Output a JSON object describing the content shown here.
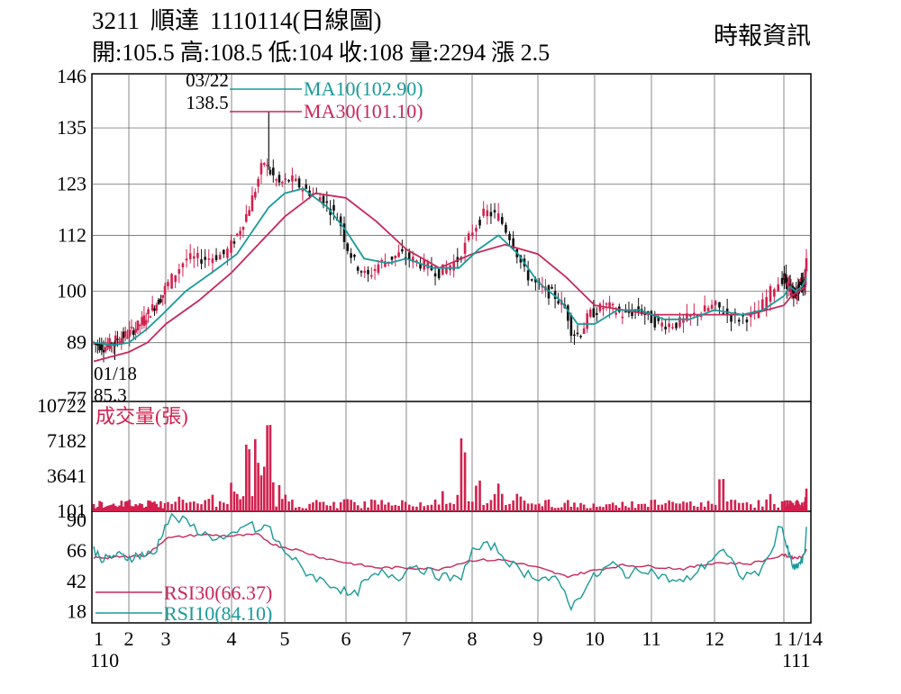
{
  "header": {
    "code": "3211",
    "name": "順達",
    "date": "1110114(日線圖)",
    "open": "開:105.5",
    "high": "高:108.5",
    "low": "低:104",
    "close": "收:108",
    "volume": "量:2294",
    "change": "漲 2.5",
    "source": "時報資訊"
  },
  "colors": {
    "candle": "#d2214e",
    "ma10": "#1a9a9a",
    "ma30": "#c8285a",
    "rsi10": "#1a9a9a",
    "rsi30": "#c8285a",
    "volume": "#d2214e",
    "grid": "#555555"
  },
  "chart_data": [
    {
      "type": "candlestick",
      "title": "3211 順達 1110114(日線圖)",
      "x_ticks": [
        "1",
        "2",
        "3",
        "4",
        "5",
        "6",
        "7",
        "8",
        "9",
        "10",
        "11",
        "12",
        "1",
        "1/14"
      ],
      "x_tick_sub": {
        "first": "110",
        "last": "111"
      },
      "y_ticks": [
        146,
        135,
        123,
        112,
        100,
        89,
        77
      ],
      "ylim": [
        77,
        146
      ],
      "grid": true,
      "legend": [
        {
          "name": "MA10(102.90)",
          "color": "#1a9a9a"
        },
        {
          "name": "MA30(101.10)",
          "color": "#c8285a"
        }
      ],
      "annotations": [
        {
          "date": "03/22",
          "value": 138.5,
          "text_top": "03/22",
          "text_bottom": "138.5"
        },
        {
          "date": "01/18",
          "value": 85.3,
          "text_top": "01/18",
          "text_bottom": "85.3"
        }
      ],
      "close_path": [
        [
          0,
          89
        ],
        [
          0.3,
          88
        ],
        [
          0.6,
          89.5
        ],
        [
          1.0,
          91
        ],
        [
          1.3,
          93
        ],
        [
          1.6,
          96
        ],
        [
          1.9,
          99
        ],
        [
          2.1,
          103
        ],
        [
          2.3,
          107
        ],
        [
          2.6,
          107
        ],
        [
          2.9,
          108
        ],
        [
          3.1,
          112
        ],
        [
          3.3,
          117
        ],
        [
          3.45,
          122
        ],
        [
          3.6,
          128
        ],
        [
          3.75,
          125
        ],
        [
          3.9,
          123
        ],
        [
          4.1,
          124
        ],
        [
          4.3,
          122
        ],
        [
          4.6,
          120
        ],
        [
          4.9,
          115
        ],
        [
          5.0,
          110
        ],
        [
          5.15,
          106
        ],
        [
          5.35,
          103
        ],
        [
          5.55,
          106
        ],
        [
          5.9,
          108
        ],
        [
          6.2,
          106
        ],
        [
          6.5,
          104
        ],
        [
          6.8,
          107
        ],
        [
          7.0,
          113
        ],
        [
          7.2,
          117
        ],
        [
          7.4,
          116
        ],
        [
          7.6,
          111
        ],
        [
          7.8,
          104
        ],
        [
          8.0,
          101
        ],
        [
          8.3,
          99
        ],
        [
          8.5,
          96
        ],
        [
          8.6,
          91
        ],
        [
          8.75,
          91
        ],
        [
          8.9,
          95
        ],
        [
          9.2,
          97
        ],
        [
          9.5,
          95
        ],
        [
          9.8,
          96
        ],
        [
          10.1,
          93
        ],
        [
          10.4,
          93
        ],
        [
          10.7,
          95
        ],
        [
          11.0,
          97
        ],
        [
          11.3,
          94
        ],
        [
          11.6,
          95
        ],
        [
          11.85,
          101
        ],
        [
          12.0,
          103
        ],
        [
          12.3,
          101
        ],
        [
          12.6,
          100
        ],
        [
          12.8,
          99
        ],
        [
          13.1,
          102
        ],
        [
          13.4,
          101.5
        ],
        [
          13.5,
          108
        ]
      ],
      "ma10_path": [
        [
          0,
          89
        ],
        [
          0.6,
          88.5
        ],
        [
          1.0,
          89
        ],
        [
          1.5,
          92
        ],
        [
          1.9,
          95
        ],
        [
          2.3,
          100
        ],
        [
          2.7,
          104
        ],
        [
          3.1,
          108
        ],
        [
          3.4,
          113
        ],
        [
          3.7,
          118
        ],
        [
          4.0,
          121
        ],
        [
          4.3,
          122
        ],
        [
          4.7,
          118
        ],
        [
          5.0,
          113
        ],
        [
          5.3,
          107
        ],
        [
          5.7,
          106
        ],
        [
          6.0,
          107
        ],
        [
          6.4,
          105
        ],
        [
          6.8,
          105
        ],
        [
          7.1,
          109
        ],
        [
          7.4,
          112
        ],
        [
          7.7,
          108
        ],
        [
          8.0,
          102
        ],
        [
          8.4,
          98
        ],
        [
          8.7,
          93
        ],
        [
          9.0,
          93
        ],
        [
          9.4,
          96
        ],
        [
          9.8,
          96
        ],
        [
          10.2,
          94
        ],
        [
          10.6,
          94
        ],
        [
          11.0,
          96
        ],
        [
          11.4,
          95
        ],
        [
          11.7,
          96
        ],
        [
          12.0,
          99
        ],
        [
          12.4,
          101
        ],
        [
          12.8,
          100
        ],
        [
          13.2,
          101
        ],
        [
          13.5,
          102.9
        ]
      ],
      "ma30_path": [
        [
          0,
          85
        ],
        [
          0.5,
          86
        ],
        [
          1.0,
          87
        ],
        [
          1.5,
          89
        ],
        [
          2.0,
          93
        ],
        [
          2.5,
          98
        ],
        [
          3.0,
          104
        ],
        [
          3.5,
          110
        ],
        [
          4.0,
          116
        ],
        [
          4.5,
          121
        ],
        [
          5.0,
          120
        ],
        [
          5.5,
          115
        ],
        [
          6.0,
          109
        ],
        [
          6.5,
          105
        ],
        [
          7.0,
          108
        ],
        [
          7.5,
          110
        ],
        [
          8.0,
          108
        ],
        [
          8.5,
          103
        ],
        [
          9.0,
          97
        ],
        [
          9.5,
          96
        ],
        [
          10.0,
          95
        ],
        [
          10.5,
          95
        ],
        [
          11.0,
          95
        ],
        [
          11.5,
          95
        ],
        [
          12.0,
          97
        ],
        [
          12.5,
          99
        ],
        [
          13.0,
          100
        ],
        [
          13.5,
          101.1
        ]
      ],
      "x_label_positions_month_index": true
    },
    {
      "type": "bar",
      "title": "成交量(張)",
      "y_ticks": [
        10722,
        7182,
        3641,
        101
      ],
      "ylim": [
        0,
        10722
      ],
      "volume_peaks": [
        [
          0.5,
          700
        ],
        [
          1.0,
          900
        ],
        [
          1.6,
          1200
        ],
        [
          2.2,
          1500
        ],
        [
          2.7,
          1800
        ],
        [
          3.0,
          3000
        ],
        [
          3.3,
          8000
        ],
        [
          3.45,
          7500
        ],
        [
          3.6,
          5000
        ],
        [
          3.7,
          10722
        ],
        [
          3.75,
          3800
        ],
        [
          4.0,
          1800
        ],
        [
          4.5,
          1200
        ],
        [
          5.0,
          1500
        ],
        [
          5.5,
          900
        ],
        [
          6.0,
          800
        ],
        [
          6.5,
          700
        ],
        [
          6.85,
          8200
        ],
        [
          7.1,
          3500
        ],
        [
          7.4,
          2800
        ],
        [
          7.7,
          2000
        ],
        [
          8.0,
          900
        ],
        [
          8.5,
          700
        ],
        [
          9.0,
          600
        ],
        [
          9.5,
          500
        ],
        [
          10.0,
          500
        ],
        [
          10.5,
          500
        ],
        [
          11.0,
          600
        ],
        [
          11.1,
          4000
        ],
        [
          11.5,
          600
        ],
        [
          11.8,
          1800
        ],
        [
          12.0,
          1200
        ],
        [
          12.5,
          600
        ],
        [
          13.0,
          800
        ],
        [
          13.5,
          2294
        ]
      ]
    },
    {
      "type": "line",
      "title": "RSI",
      "y_ticks": [
        90,
        66,
        42,
        18
      ],
      "ylim": [
        10,
        95
      ],
      "legend": [
        {
          "name": "RSI30(66.37)",
          "color": "#c8285a"
        },
        {
          "name": "RSI10(84.10)",
          "color": "#1a9a9a"
        }
      ],
      "rsi10_path": [
        [
          0,
          66
        ],
        [
          0.3,
          58
        ],
        [
          0.6,
          62
        ],
        [
          1.0,
          60
        ],
        [
          1.3,
          62
        ],
        [
          1.7,
          63
        ],
        [
          1.9,
          80
        ],
        [
          2.1,
          92
        ],
        [
          2.3,
          88
        ],
        [
          2.6,
          78
        ],
        [
          2.9,
          74
        ],
        [
          3.1,
          78
        ],
        [
          3.3,
          88
        ],
        [
          3.5,
          80
        ],
        [
          3.7,
          86
        ],
        [
          3.8,
          74
        ],
        [
          4.0,
          66
        ],
        [
          4.3,
          50
        ],
        [
          4.6,
          42
        ],
        [
          4.9,
          36
        ],
        [
          5.1,
          28
        ],
        [
          5.3,
          40
        ],
        [
          5.6,
          48
        ],
        [
          5.9,
          45
        ],
        [
          6.1,
          55
        ],
        [
          6.4,
          47
        ],
        [
          6.8,
          42
        ],
        [
          7.0,
          65
        ],
        [
          7.3,
          70
        ],
        [
          7.5,
          60
        ],
        [
          7.7,
          50
        ],
        [
          8.0,
          45
        ],
        [
          8.3,
          42
        ],
        [
          8.5,
          32
        ],
        [
          8.6,
          20
        ],
        [
          8.8,
          35
        ],
        [
          9.0,
          45
        ],
        [
          9.3,
          55
        ],
        [
          9.6,
          46
        ],
        [
          9.9,
          52
        ],
        [
          10.2,
          44
        ],
        [
          10.5,
          40
        ],
        [
          10.8,
          52
        ],
        [
          11.1,
          66
        ],
        [
          11.4,
          45
        ],
        [
          11.7,
          50
        ],
        [
          11.95,
          86
        ],
        [
          12.1,
          72
        ],
        [
          12.4,
          60
        ],
        [
          12.7,
          50
        ],
        [
          13.0,
          55
        ],
        [
          13.3,
          58
        ],
        [
          13.4,
          66
        ],
        [
          13.5,
          84.1
        ]
      ],
      "rsi30_path": [
        [
          0,
          60
        ],
        [
          0.5,
          60
        ],
        [
          1.0,
          61
        ],
        [
          1.5,
          62
        ],
        [
          2.0,
          75
        ],
        [
          2.5,
          78
        ],
        [
          3.0,
          77
        ],
        [
          3.5,
          78
        ],
        [
          3.8,
          70
        ],
        [
          4.2,
          66
        ],
        [
          4.6,
          60
        ],
        [
          5.0,
          56
        ],
        [
          5.5,
          52
        ],
        [
          6.0,
          52
        ],
        [
          6.5,
          51
        ],
        [
          7.0,
          58
        ],
        [
          7.5,
          58
        ],
        [
          8.0,
          52
        ],
        [
          8.5,
          45
        ],
        [
          9.0,
          50
        ],
        [
          9.5,
          54
        ],
        [
          10.0,
          53
        ],
        [
          10.5,
          51
        ],
        [
          11.0,
          56
        ],
        [
          11.5,
          55
        ],
        [
          12.0,
          62
        ],
        [
          12.5,
          60
        ],
        [
          13.0,
          60
        ],
        [
          13.3,
          62
        ],
        [
          13.5,
          66.37
        ]
      ]
    }
  ]
}
